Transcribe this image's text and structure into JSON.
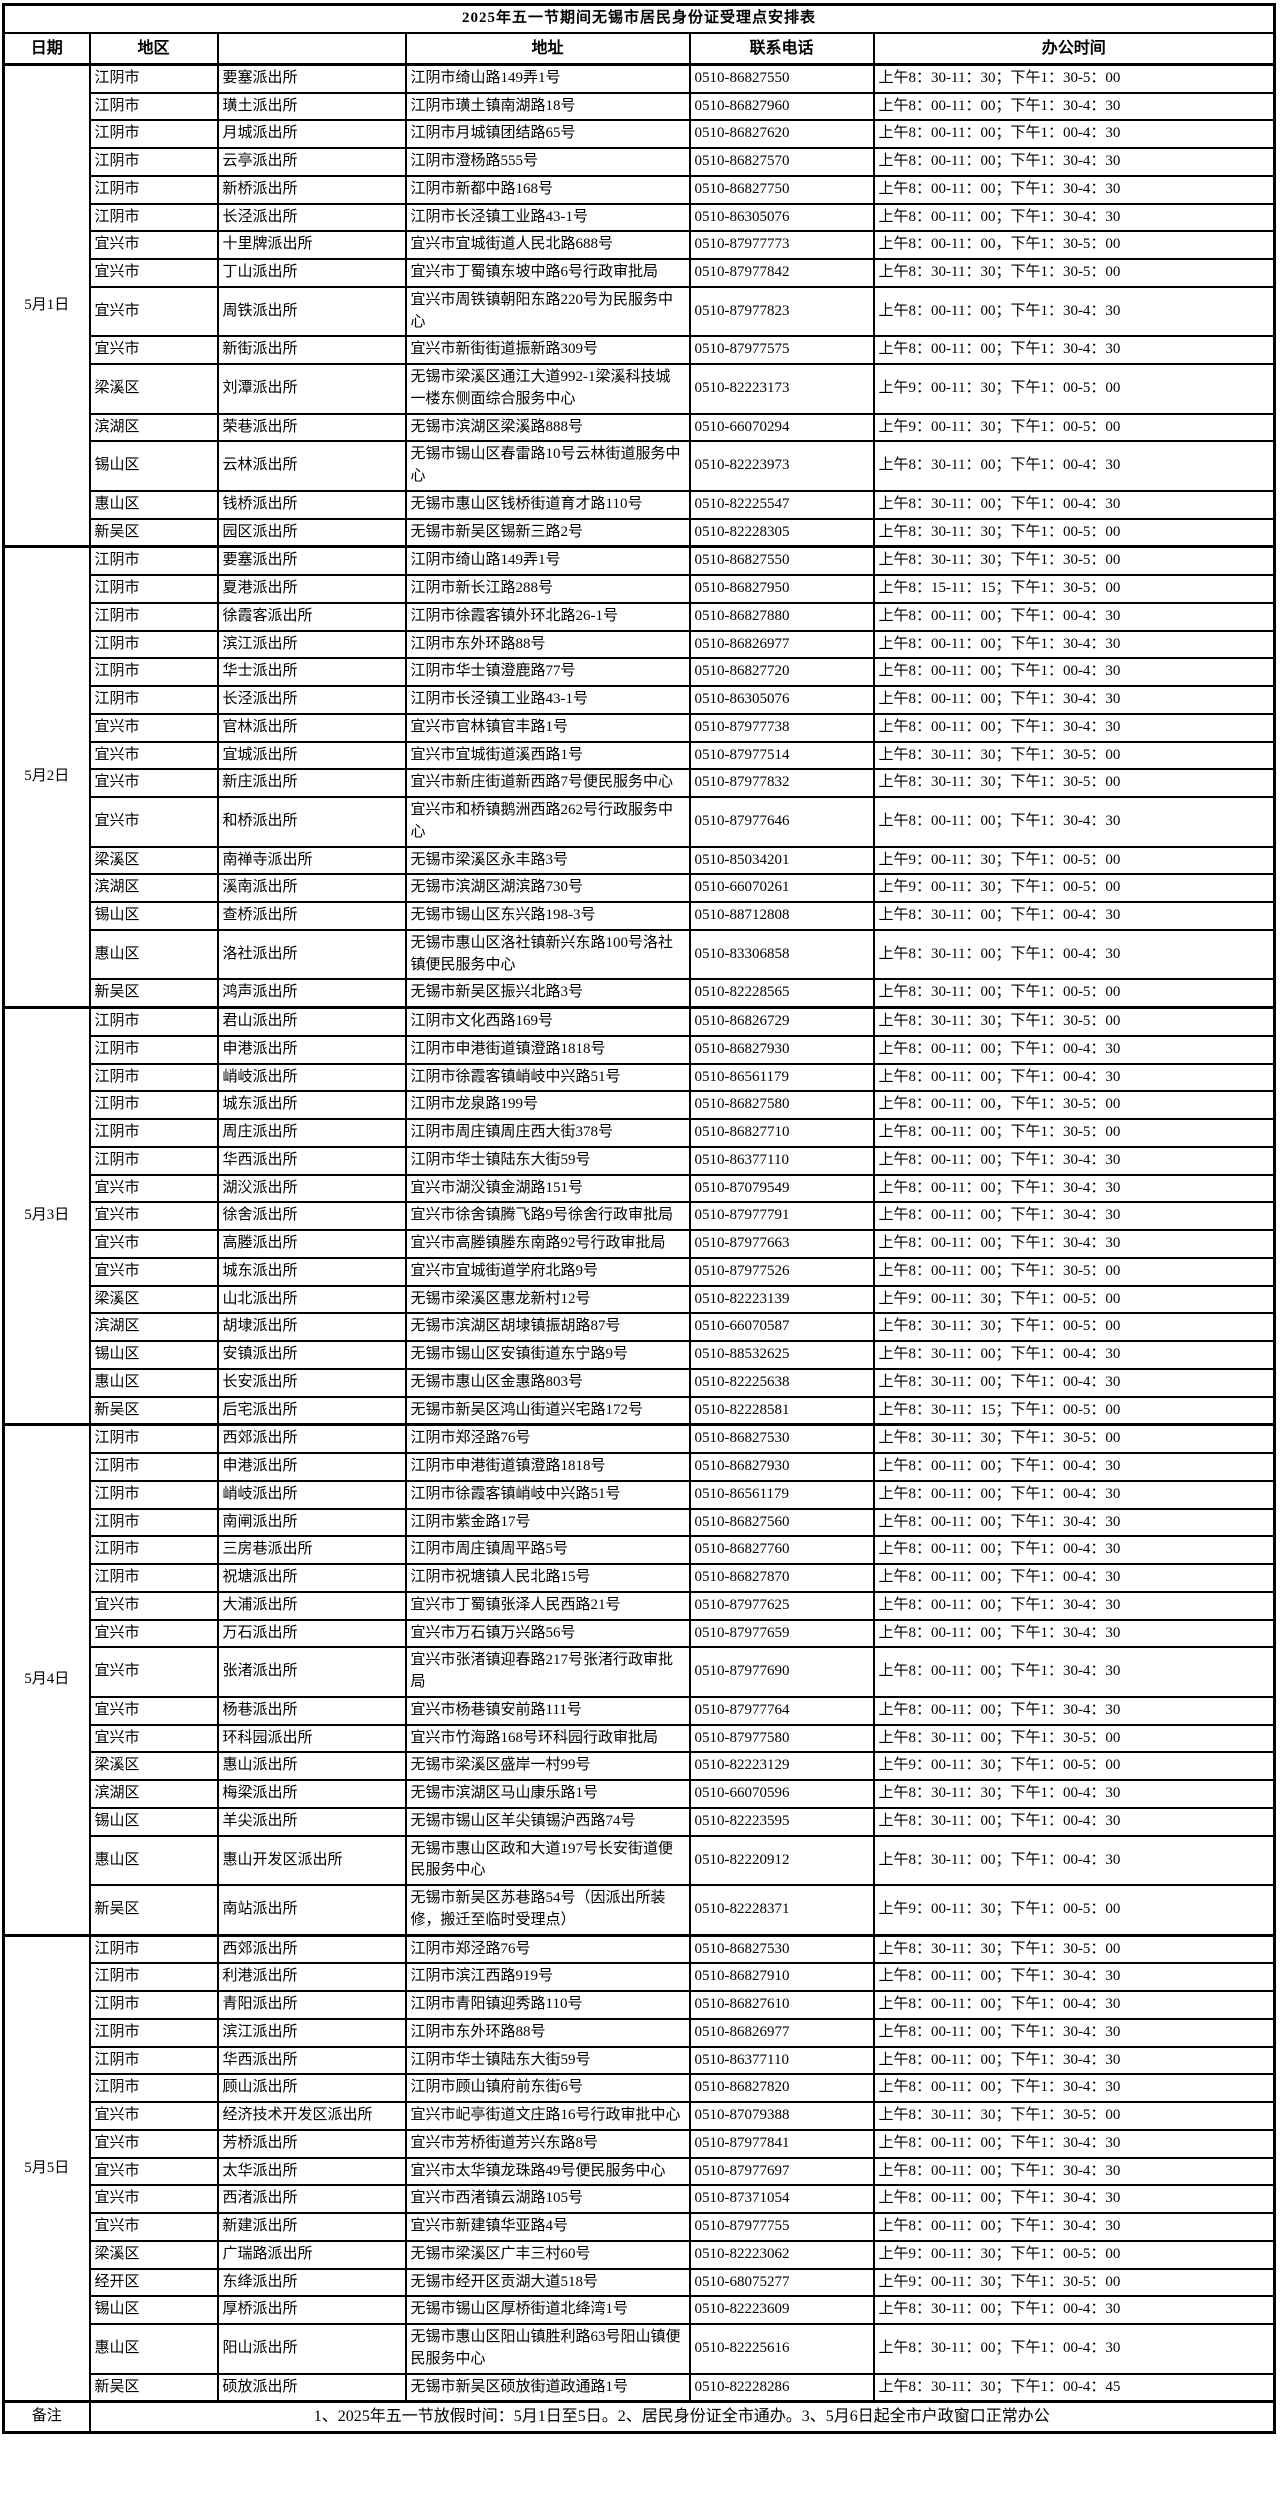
{
  "title": "2025年五一节期间无锡市居民身份证受理点安排表",
  "columns": [
    "日期",
    "地区",
    "",
    "地址",
    "联系电话",
    "办公时间"
  ],
  "remark_label": "备注",
  "remark": "1、2025年五一节放假时间：5月1日至5日。2、居民身份证全市通办。3、5月6日起全市户政窗口正常办公",
  "colors": {
    "border": "#000000",
    "text": "#000000",
    "background": "#ffffff"
  },
  "sections": [
    {
      "date": "5月1日",
      "rows": [
        [
          "江阴市",
          "要塞派出所",
          "江阴市绮山路149弄1号",
          "0510-86827550",
          "上午8：30-11：30；下午1：30-5：00"
        ],
        [
          "江阴市",
          "璜土派出所",
          "江阴市璜土镇南湖路18号",
          "0510-86827960",
          "上午8：00-11：00；下午1：30-4：30"
        ],
        [
          "江阴市",
          "月城派出所",
          "江阴市月城镇团结路65号",
          "0510-86827620",
          "上午8：00-11：00；下午1：00-4：30"
        ],
        [
          "江阴市",
          "云亭派出所",
          "江阴市澄杨路555号",
          "0510-86827570",
          "上午8：00-11：00；下午1：30-4：30"
        ],
        [
          "江阴市",
          "新桥派出所",
          "江阴市新都中路168号",
          "0510-86827750",
          "上午8：00-11：00；下午1：30-4：30"
        ],
        [
          "江阴市",
          "长泾派出所",
          "江阴市长泾镇工业路43-1号",
          "0510-86305076",
          "上午8：00-11：00；下午1：30-4：30"
        ],
        [
          "宜兴市",
          "十里牌派出所",
          "宜兴市宜城街道人民北路688号",
          "0510-87977773",
          "上午8：00-11：00，下午1：30-5：00"
        ],
        [
          "宜兴市",
          "丁山派出所",
          "宜兴市丁蜀镇东坡中路6号行政审批局",
          "0510-87977842",
          "上午8：30-11：30；下午1：30-5：00"
        ],
        [
          "宜兴市",
          "周铁派出所",
          "宜兴市周铁镇朝阳东路220号为民服务中心",
          "0510-87977823",
          "上午8：00-11：00；下午1：30-4：30"
        ],
        [
          "宜兴市",
          "新街派出所",
          "宜兴市新街街道振新路309号",
          "0510-87977575",
          "上午8：00-11：00；下午1：30-4：30"
        ],
        [
          "梁溪区",
          "刘潭派出所",
          "无锡市梁溪区通江大道992-1梁溪科技城一楼东侧面综合服务中心",
          "0510-82223173",
          "上午9：00-11：30；下午1：00-5：00"
        ],
        [
          "滨湖区",
          "荣巷派出所",
          "无锡市滨湖区梁溪路888号",
          "0510-66070294",
          "上午9：00-11：30；下午1：00-5：00"
        ],
        [
          "锡山区",
          "云林派出所",
          "无锡市锡山区春雷路10号云林街道服务中心",
          "0510-82223973",
          "上午8：30-11：00；下午1：00-4：30"
        ],
        [
          "惠山区",
          "钱桥派出所",
          "无锡市惠山区钱桥街道育才路110号",
          "0510-82225547",
          "上午8：30-11：00；下午1：00-4：30"
        ],
        [
          "新吴区",
          "园区派出所",
          "无锡市新吴区锡新三路2号",
          "0510-82228305",
          "上午8：30-11：30；下午1：00-5：00"
        ]
      ]
    },
    {
      "date": "5月2日",
      "rows": [
        [
          "江阴市",
          "要塞派出所",
          "江阴市绮山路149弄1号",
          "0510-86827550",
          "上午8：30-11：30；下午1：30-5：00"
        ],
        [
          "江阴市",
          "夏港派出所",
          "江阴市新长江路288号",
          "0510-86827950",
          "上午8：15-11：15；下午1：30-5：00"
        ],
        [
          "江阴市",
          "徐霞客派出所",
          "江阴市徐霞客镇外环北路26-1号",
          "0510-86827880",
          "上午8：00-11：00；下午1：00-4：30"
        ],
        [
          "江阴市",
          "滨江派出所",
          "江阴市东外环路88号",
          "0510-86826977",
          "上午8：00-11：00；下午1：30-4：30"
        ],
        [
          "江阴市",
          "华士派出所",
          "江阴市华士镇澄鹿路77号",
          "0510-86827720",
          "上午8：00-11：00；下午1：00-4：30"
        ],
        [
          "江阴市",
          "长泾派出所",
          "江阴市长泾镇工业路43-1号",
          "0510-86305076",
          "上午8：00-11：00；下午1：30-4：30"
        ],
        [
          "宜兴市",
          "官林派出所",
          "宜兴市官林镇官丰路1号",
          "0510-87977738",
          "上午8：00-11：00；下午1：30-4：30"
        ],
        [
          "宜兴市",
          "宜城派出所",
          "宜兴市宜城街道溪西路1号",
          "0510-87977514",
          "上午8：30-11：30；下午1：30-5：00"
        ],
        [
          "宜兴市",
          "新庄派出所",
          "宜兴市新庄街道新西路7号便民服务中心",
          "0510-87977832",
          "上午8：30-11：30；下午1：30-5：00"
        ],
        [
          "宜兴市",
          "和桥派出所",
          "宜兴市和桥镇鹅洲西路262号行政服务中心",
          "0510-87977646",
          "上午8：00-11：00；下午1：30-4：30"
        ],
        [
          "梁溪区",
          "南禅寺派出所",
          "无锡市梁溪区永丰路3号",
          "0510-85034201",
          "上午9：00-11：30；下午1：00-5：00"
        ],
        [
          "滨湖区",
          "溪南派出所",
          "无锡市滨湖区湖滨路730号",
          "0510-66070261",
          "上午9：00-11：30；下午1：00-5：00"
        ],
        [
          "锡山区",
          "查桥派出所",
          "无锡市锡山区东兴路198-3号",
          "0510-88712808",
          "上午8：30-11：00；下午1：00-4：30"
        ],
        [
          "惠山区",
          "洛社派出所",
          "无锡市惠山区洛社镇新兴东路100号洛社镇便民服务中心",
          "0510-83306858",
          "上午8：30-11：00；下午1：00-4：30"
        ],
        [
          "新吴区",
          "鸿声派出所",
          "无锡市新吴区振兴北路3号",
          "0510-82228565",
          "上午8：30-11：00；下午1：00-5：00"
        ]
      ]
    },
    {
      "date": "5月3日",
      "rows": [
        [
          "江阴市",
          "君山派出所",
          "江阴市文化西路169号",
          "0510-86826729",
          "上午8：30-11：30；下午1：30-5：00"
        ],
        [
          "江阴市",
          "申港派出所",
          "江阴市申港街道镇澄路1818号",
          "0510-86827930",
          "上午8：00-11：00；下午1：00-4：30"
        ],
        [
          "江阴市",
          "峭岐派出所",
          "江阴市徐霞客镇峭岐中兴路51号",
          "0510-86561179",
          "上午8：00-11：00；下午1：00-4：30"
        ],
        [
          "江阴市",
          "城东派出所",
          "江阴市龙泉路199号",
          "0510-86827580",
          "上午8：00-11：00，下午1：30-5：00"
        ],
        [
          "江阴市",
          "周庄派出所",
          "江阴市周庄镇周庄西大街378号",
          "0510-86827710",
          "上午8：00-11：00；下午1：30-5：00"
        ],
        [
          "江阴市",
          "华西派出所",
          "江阴市华士镇陆东大街59号",
          "0510-86377110",
          "上午8：00-11：00；下午1：30-4：30"
        ],
        [
          "宜兴市",
          "湖㳇派出所",
          "宜兴市湖㳇镇金湖路151号",
          "0510-87079549",
          "上午8：00-11：00；下午1：30-4：30"
        ],
        [
          "宜兴市",
          "徐舍派出所",
          "宜兴市徐舍镇腾飞路9号徐舍行政审批局",
          "0510-87977791",
          "上午8：00-11：00；下午1：30-4：30"
        ],
        [
          "宜兴市",
          "高塍派出所",
          "宜兴市高塍镇塍东南路92号行政审批局",
          "0510-87977663",
          "上午8：00-11：00；下午1：30-4：30"
        ],
        [
          "宜兴市",
          "城东派出所",
          "宜兴市宜城街道学府北路9号",
          "0510-87977526",
          "上午8：00-11：00；下午1：30-5：00"
        ],
        [
          "梁溪区",
          "山北派出所",
          "无锡市梁溪区惠龙新村12号",
          "0510-82223139",
          "上午9：00-11：30；下午1：00-5：00"
        ],
        [
          "滨湖区",
          "胡埭派出所",
          "无锡市滨湖区胡埭镇振胡路87号",
          "0510-66070587",
          "上午8：30-11：30；下午1：00-5：00"
        ],
        [
          "锡山区",
          "安镇派出所",
          "无锡市锡山区安镇街道东宁路9号",
          "0510-88532625",
          "上午8：30-11：00；下午1：00-4：30"
        ],
        [
          "惠山区",
          "长安派出所",
          "无锡市惠山区金惠路803号",
          "0510-82225638",
          "上午8：30-11：00；下午1：00-4：30"
        ],
        [
          "新吴区",
          "后宅派出所",
          "无锡市新吴区鸿山街道兴宅路172号",
          "0510-82228581",
          "上午8：30-11：15；下午1：00-5：00"
        ]
      ]
    },
    {
      "date": "5月4日",
      "rows": [
        [
          "江阴市",
          "西郊派出所",
          "江阴市郑泾路76号",
          "0510-86827530",
          "上午8：30-11：30；下午1：30-5：00"
        ],
        [
          "江阴市",
          "申港派出所",
          "江阴市申港街道镇澄路1818号",
          "0510-86827930",
          "上午8：00-11：00；下午1：00-4：30"
        ],
        [
          "江阴市",
          "峭岐派出所",
          "江阴市徐霞客镇峭岐中兴路51号",
          "0510-86561179",
          "上午8：00-11：00；下午1：00-4：30"
        ],
        [
          "江阴市",
          "南闸派出所",
          "江阴市紫金路17号",
          "0510-86827560",
          "上午8：00-11：00；下午1：30-4：30"
        ],
        [
          "江阴市",
          "三房巷派出所",
          "江阴市周庄镇周平路5号",
          "0510-86827760",
          "上午8：00-11：00；下午1：00-4：30"
        ],
        [
          "江阴市",
          "祝塘派出所",
          "江阴市祝塘镇人民北路15号",
          "0510-86827870",
          "上午8：00-11：00；下午1：00-4：30"
        ],
        [
          "宜兴市",
          "大浦派出所",
          "宜兴市丁蜀镇张泽人民西路21号",
          "0510-87977625",
          "上午8：00-11：00；下午1：30-4：30"
        ],
        [
          "宜兴市",
          "万石派出所",
          "宜兴市万石镇万兴路56号",
          "0510-87977659",
          "上午8：00-11：00；下午1：30-4：30"
        ],
        [
          "宜兴市",
          "张渚派出所",
          "宜兴市张渚镇迎春路217号张渚行政审批局",
          "0510-87977690",
          "上午8：00-11：00；下午1：30-4：30"
        ],
        [
          "宜兴市",
          "杨巷派出所",
          "宜兴市杨巷镇安前路111号",
          "0510-87977764",
          "上午8：00-11：00；下午1：30-4：30"
        ],
        [
          "宜兴市",
          "环科园派出所",
          "宜兴市竹海路168号环科园行政审批局",
          "0510-87977580",
          "上午8：30-11：00；下午1：30-5：00"
        ],
        [
          "梁溪区",
          "惠山派出所",
          "无锡市梁溪区盛岸一村99号",
          "0510-82223129",
          "上午9：00-11：30；下午1：00-5：00"
        ],
        [
          "滨湖区",
          "梅梁派出所",
          "无锡市滨湖区马山康乐路1号",
          "0510-66070596",
          "上午8：30-11：30；下午1：00-4：30"
        ],
        [
          "锡山区",
          "羊尖派出所",
          "无锡市锡山区羊尖镇锡沪西路74号",
          "0510-82223595",
          "上午8：30-11：00；下午1：00-4：30"
        ],
        [
          "惠山区",
          "惠山开发区派出所",
          "无锡市惠山区政和大道197号长安街道便民服务中心",
          "0510-82220912",
          "上午8：30-11：00；下午1：00-4：30"
        ],
        [
          "新吴区",
          "南站派出所",
          "无锡市新吴区苏巷路54号（因派出所装修，搬迁至临时受理点）",
          "0510-82228371",
          "上午9：00-11：30；下午1：00-5：00"
        ]
      ]
    },
    {
      "date": "5月5日",
      "rows": [
        [
          "江阴市",
          "西郊派出所",
          "江阴市郑泾路76号",
          "0510-86827530",
          "上午8：30-11：30；下午1：30-5：00"
        ],
        [
          "江阴市",
          "利港派出所",
          "江阴市滨江西路919号",
          "0510-86827910",
          "上午8：00-11：00；下午1：30-4：30"
        ],
        [
          "江阴市",
          "青阳派出所",
          "江阴市青阳镇迎秀路110号",
          "0510-86827610",
          "上午8：00-11：00；下午1：00-4：30"
        ],
        [
          "江阴市",
          "滨江派出所",
          "江阴市东外环路88号",
          "0510-86826977",
          "上午8：00-11：00；下午1：30-4：30"
        ],
        [
          "江阴市",
          "华西派出所",
          "江阴市华士镇陆东大街59号",
          "0510-86377110",
          "上午8：00-11：00；下午1：30-4：30"
        ],
        [
          "江阴市",
          "顾山派出所",
          "江阴市顾山镇府前东街6号",
          "0510-86827820",
          "上午8：00-11：00；下午1：30-4：30"
        ],
        [
          "宜兴市",
          "经济技术开发区派出所",
          "宜兴市屺亭街道文庄路16号行政审批中心",
          "0510-87079388",
          "上午8：30-11：30；下午1：30-5：00"
        ],
        [
          "宜兴市",
          "芳桥派出所",
          "宜兴市芳桥街道芳兴东路8号",
          "0510-87977841",
          "上午8：00-11：00；下午1：30-4：30"
        ],
        [
          "宜兴市",
          "太华派出所",
          "宜兴市太华镇龙珠路49号便民服务中心",
          "0510-87977697",
          "上午8：00-11：00；下午1：30-4：30"
        ],
        [
          "宜兴市",
          "西渚派出所",
          "宜兴市西渚镇云湖路105号",
          "0510-87371054",
          "上午8：00-11：00；下午1：30-4：30"
        ],
        [
          "宜兴市",
          "新建派出所",
          "宜兴市新建镇华亚路4号",
          "0510-87977755",
          "上午8：00-11：00；下午1：30-4：30"
        ],
        [
          "梁溪区",
          "广瑞路派出所",
          "无锡市梁溪区广丰三村60号",
          "0510-82223062",
          "上午9：00-11：30；下午1：00-5：00"
        ],
        [
          "经开区",
          "东绛派出所",
          "无锡市经开区贡湖大道518号",
          "0510-68075277",
          "上午9：00-11：30；下午1：30-5：00"
        ],
        [
          "锡山区",
          "厚桥派出所",
          "无锡市锡山区厚桥街道北绛湾1号",
          "0510-82223609",
          "上午8：30-11：00；下午1：00-4：30"
        ],
        [
          "惠山区",
          "阳山派出所",
          "无锡市惠山区阳山镇胜利路63号阳山镇便民服务中心",
          "0510-82225616",
          "上午8：30-11：00；下午1：00-4：30"
        ],
        [
          "新吴区",
          "硕放派出所",
          "无锡市新吴区硕放街道政通路1号",
          "0510-82228286",
          "上午8：30-11：30；下午1：00-4：45"
        ]
      ]
    }
  ]
}
